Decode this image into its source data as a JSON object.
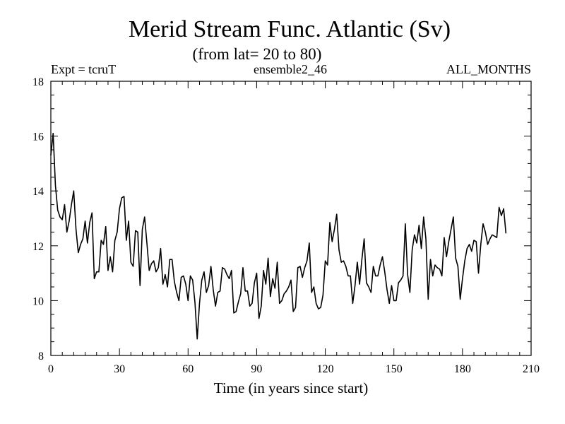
{
  "chart_data": {
    "type": "line",
    "title": "Merid Stream Func. Atlantic (Sv)",
    "subtitle": "(from lat= 20 to 80)",
    "left_label": "Expt = tcruT",
    "center_label": "ensemble2_46",
    "right_label": "ALL_MONTHS",
    "xlabel": "Time (in years since start)",
    "ylabel": "",
    "xlim": [
      0,
      210
    ],
    "ylim": [
      8,
      18
    ],
    "x_ticks": [
      0,
      30,
      60,
      90,
      120,
      150,
      180,
      210
    ],
    "y_ticks": [
      8,
      10,
      12,
      14,
      16,
      18
    ],
    "x_minor_step": 5,
    "y_minor_step": 0.5,
    "grid": false,
    "series": [
      {
        "name": "ensemble2_46",
        "color": "#000000",
        "x_start": 0,
        "x_step": 1,
        "values": [
          15.3,
          16.1,
          14.2,
          13.3,
          13.05,
          12.95,
          13.5,
          12.5,
          12.9,
          13.5,
          14.0,
          12.6,
          11.75,
          12.05,
          12.25,
          12.9,
          12.1,
          12.85,
          13.2,
          10.8,
          11.05,
          11.05,
          12.2,
          12.05,
          12.7,
          11.1,
          11.6,
          11.05,
          12.2,
          12.5,
          13.35,
          13.75,
          13.8,
          12.2,
          12.9,
          11.4,
          11.25,
          12.55,
          12.5,
          10.55,
          12.6,
          13.05,
          12.1,
          11.1,
          11.35,
          11.45,
          11.05,
          11.2,
          11.9,
          10.6,
          10.95,
          10.5,
          11.5,
          11.5,
          10.7,
          10.3,
          10.0,
          10.85,
          10.9,
          10.6,
          10.0,
          10.9,
          10.75,
          9.95,
          8.6,
          9.9,
          10.75,
          11.05,
          10.3,
          10.55,
          11.25,
          10.4,
          9.8,
          10.3,
          10.35,
          11.2,
          11.15,
          10.95,
          10.8,
          11.1,
          9.55,
          9.6,
          9.95,
          10.25,
          11.2,
          10.35,
          10.35,
          9.8,
          9.9,
          10.65,
          11.0,
          9.35,
          9.8,
          11.1,
          10.6,
          11.55,
          10.15,
          10.8,
          10.45,
          11.4,
          9.9,
          10.0,
          10.25,
          10.35,
          10.5,
          10.75,
          9.6,
          9.75,
          11.2,
          11.25,
          10.85,
          11.2,
          11.45,
          12.1,
          10.3,
          10.5,
          9.9,
          9.7,
          9.75,
          10.2,
          11.45,
          11.3,
          12.85,
          12.15,
          12.6,
          13.15,
          11.85,
          11.4,
          11.45,
          11.25,
          10.9,
          10.9,
          9.9,
          10.55,
          11.4,
          10.6,
          11.5,
          12.25,
          10.65,
          10.5,
          10.3,
          11.25,
          10.9,
          10.9,
          11.3,
          11.6,
          11.05,
          10.4,
          9.9,
          10.55,
          10.0,
          10.0,
          10.65,
          10.75,
          10.9,
          12.8,
          10.95,
          10.3,
          11.85,
          12.4,
          12.1,
          12.75,
          11.9,
          13.05,
          12.25,
          10.05,
          11.5,
          10.9,
          11.3,
          11.2,
          11.15,
          10.9,
          12.3,
          11.6,
          12.15,
          12.6,
          13.05,
          11.55,
          11.25,
          10.05,
          10.8,
          11.45,
          11.9,
          12.05,
          11.8,
          12.2,
          12.15,
          11.0,
          12.05,
          12.8,
          12.5,
          12.05,
          12.25,
          12.4,
          12.35,
          12.3,
          13.4,
          13.1,
          13.35,
          12.45
        ]
      }
    ]
  }
}
